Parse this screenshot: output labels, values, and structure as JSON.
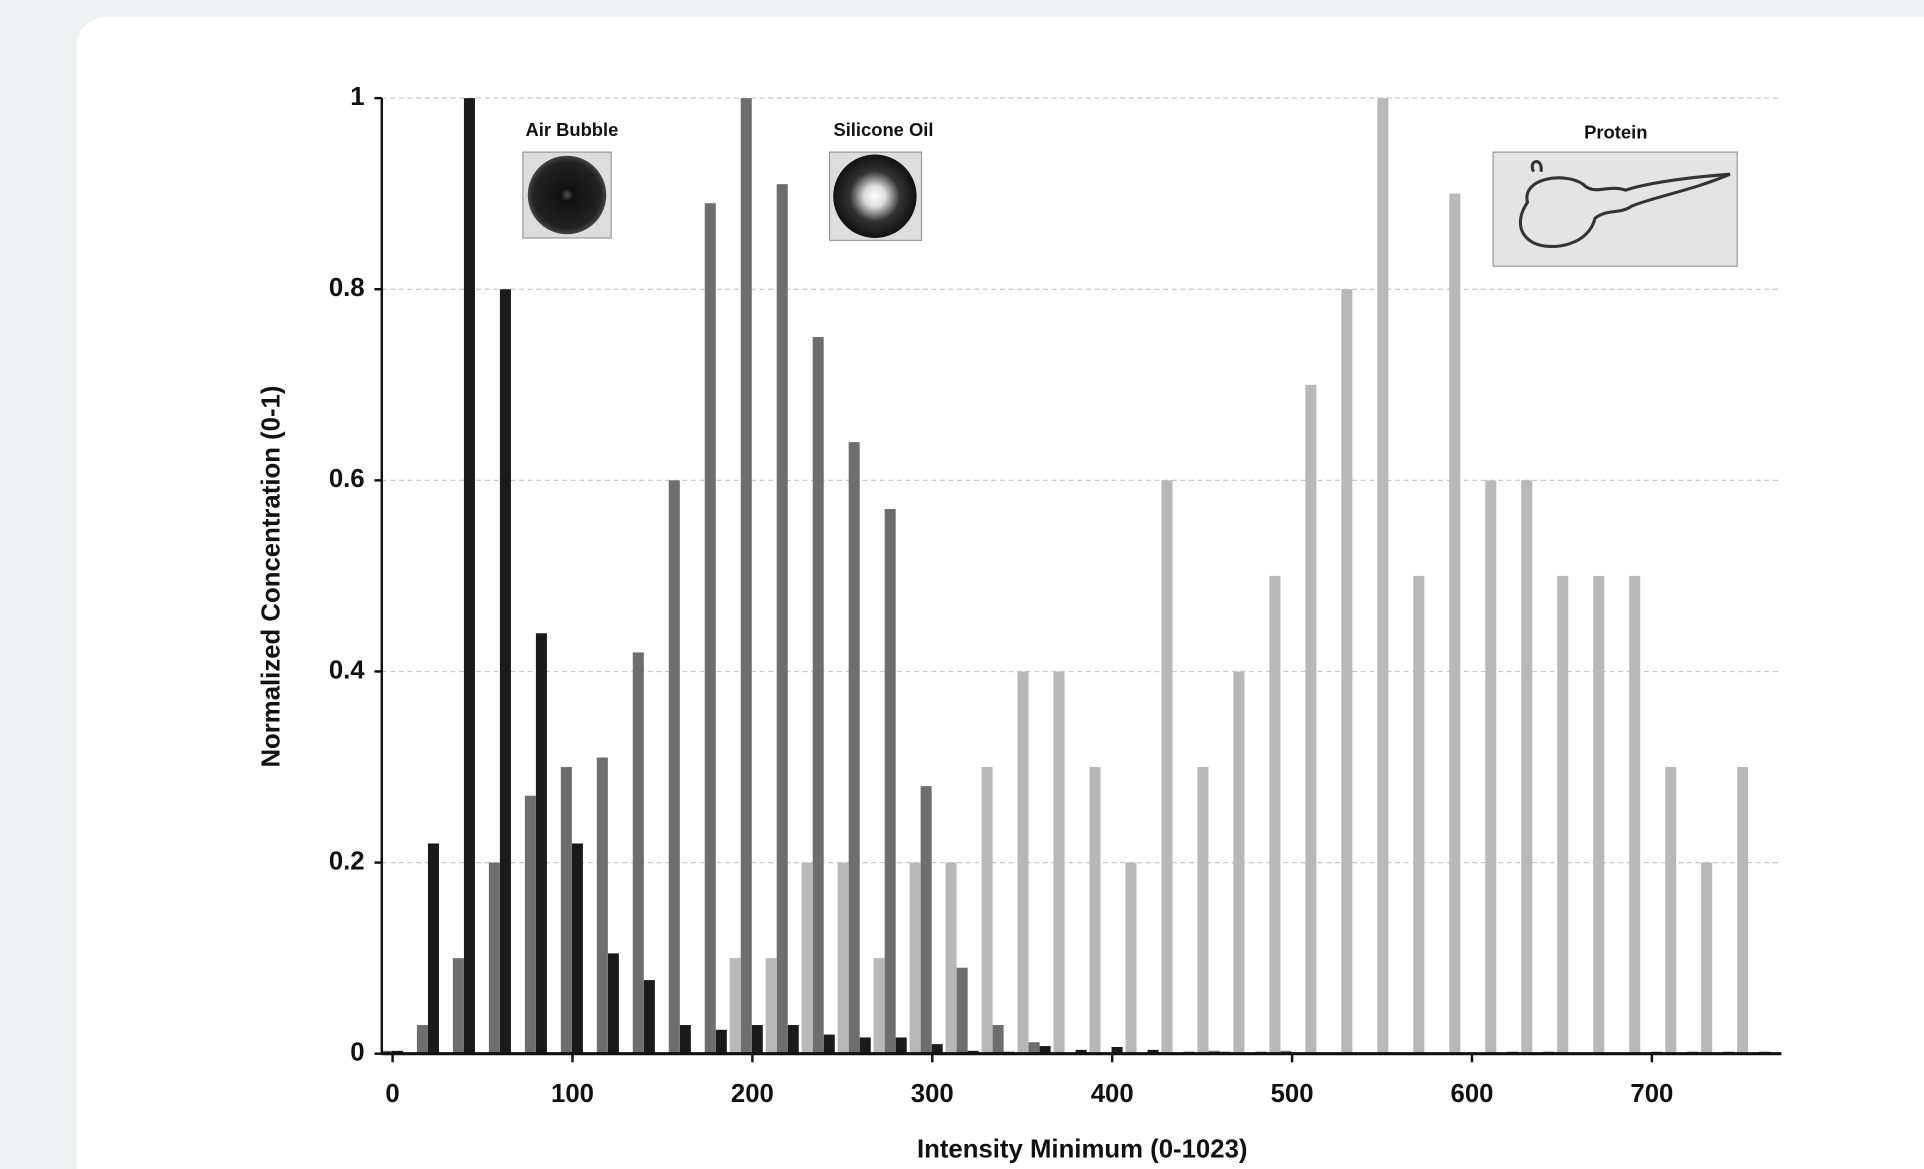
{
  "chart_data": {
    "type": "bar",
    "x_label": "Intensity Minimum  (0-1023)",
    "y_label": "Normalized Concentration (0-1)",
    "x": [
      0,
      20,
      40,
      60,
      80,
      100,
      120,
      140,
      160,
      180,
      200,
      220,
      240,
      260,
      280,
      300,
      320,
      340,
      360,
      380,
      400,
      420,
      440,
      460,
      480,
      500,
      520,
      540,
      560,
      580,
      600,
      620,
      640,
      660,
      680,
      700,
      720,
      740,
      760
    ],
    "series": [
      {
        "name": "Air Bubble",
        "color": "#1a1a1a",
        "values": [
          0.003,
          0.22,
          1.0,
          0.8,
          0.44,
          0.22,
          0.105,
          0.077,
          0.03,
          0.025,
          0.03,
          0.03,
          0.02,
          0.017,
          0.017,
          0.01,
          0.003,
          0.002,
          0.008,
          0.004,
          0.007,
          0.004,
          0.002,
          0.002,
          0.002,
          0,
          0,
          0,
          0,
          0,
          0,
          0.002,
          0.002,
          0,
          0,
          0.002,
          0.002,
          0.002,
          0.002
        ]
      },
      {
        "name": "Silicone Oil",
        "color": "#6e6e6e",
        "values": [
          0.003,
          0.03,
          0.1,
          0.2,
          0.27,
          0.3,
          0.31,
          0.42,
          0.6,
          0.89,
          1.0,
          0.91,
          0.75,
          0.64,
          0.57,
          0.28,
          0.09,
          0.03,
          0.012,
          0,
          0,
          0,
          0,
          0.003,
          0,
          0.003,
          0,
          0,
          0,
          0,
          0,
          0,
          0,
          0,
          0,
          0,
          0,
          0,
          0
        ]
      },
      {
        "name": "Protein",
        "color": "#b8b8b8",
        "values": [
          0,
          0,
          0,
          0,
          0,
          0,
          0,
          0,
          0,
          0,
          0.1,
          0.1,
          0.2,
          0.2,
          0.1,
          0.2,
          0.2,
          0.3,
          0.4,
          0.4,
          0.3,
          0.2,
          0.6,
          0.3,
          0.4,
          0.5,
          0.7,
          0.8,
          1.0,
          0.5,
          0.9,
          0.6,
          0.6,
          0.5,
          0.5,
          0.5,
          0.3,
          0.2,
          0.3
        ]
      }
    ],
    "xlim": [
      -6,
      772
    ],
    "xticks": [
      0,
      100,
      200,
      300,
      400,
      500,
      600,
      700
    ],
    "ylim": [
      0,
      1
    ],
    "yticks": [
      0,
      0.2,
      0.4,
      0.6,
      0.8,
      1
    ],
    "grid": true
  }
}
